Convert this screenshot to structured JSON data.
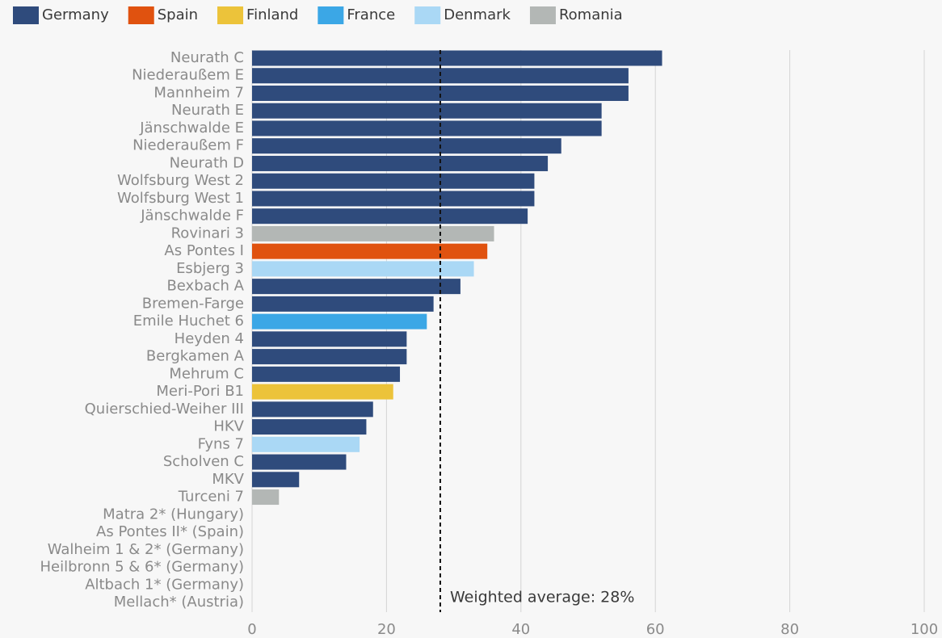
{
  "chart_data": {
    "type": "bar",
    "orientation": "horizontal",
    "categories": [
      "Neurath C",
      "Niederaußem E",
      "Mannheim 7",
      "Neurath E",
      "Jänschwalde E",
      "Niederaußem F",
      "Neurath D",
      "Wolfsburg West 2",
      "Wolfsburg West 1",
      "Jänschwalde F",
      "Rovinari 3",
      "As Pontes I",
      "Esbjerg 3",
      "Bexbach A",
      "Bremen-Farge",
      "Emile Huchet 6",
      "Heyden 4",
      "Bergkamen A",
      "Mehrum C",
      "Meri-Pori B1",
      "Quierschied-Weiher III",
      "HKV",
      "Fyns 7",
      "Scholven C",
      "MKV",
      "Turceni 7",
      "Matra 2* (Hungary)",
      "As Pontes II* (Spain)",
      "Walheim 1 & 2* (Germany)",
      "Heilbronn 5 & 6* (Germany)",
      "Altbach 1* (Germany)",
      "Mellach* (Austria)"
    ],
    "series": [
      {
        "name": "Germany",
        "color": "#2f4b7c",
        "values": [
          61,
          56,
          56,
          52,
          52,
          46,
          44,
          42,
          42,
          41,
          null,
          null,
          null,
          31,
          27,
          null,
          23,
          23,
          22,
          null,
          18,
          17,
          null,
          14,
          7,
          null,
          null,
          null,
          null,
          null,
          null,
          null
        ]
      },
      {
        "name": "Spain",
        "color": "#e0520f",
        "values": [
          null,
          null,
          null,
          null,
          null,
          null,
          null,
          null,
          null,
          null,
          null,
          35,
          null,
          null,
          null,
          null,
          null,
          null,
          null,
          null,
          null,
          null,
          null,
          null,
          null,
          null,
          null,
          null,
          null,
          null,
          null,
          null
        ]
      },
      {
        "name": "Finland",
        "color": "#ecc33a",
        "values": [
          null,
          null,
          null,
          null,
          null,
          null,
          null,
          null,
          null,
          null,
          null,
          null,
          null,
          null,
          null,
          null,
          null,
          null,
          null,
          21,
          null,
          null,
          null,
          null,
          null,
          null,
          null,
          null,
          null,
          null,
          null,
          null
        ]
      },
      {
        "name": "France",
        "color": "#3ba7e6",
        "values": [
          null,
          null,
          null,
          null,
          null,
          null,
          null,
          null,
          null,
          null,
          null,
          null,
          null,
          null,
          null,
          26,
          null,
          null,
          null,
          null,
          null,
          null,
          null,
          null,
          null,
          null,
          null,
          null,
          null,
          null,
          null,
          null
        ]
      },
      {
        "name": "Denmark",
        "color": "#aad8f5",
        "values": [
          null,
          null,
          null,
          null,
          null,
          null,
          null,
          null,
          null,
          null,
          null,
          null,
          33,
          null,
          null,
          null,
          null,
          null,
          null,
          null,
          null,
          null,
          16,
          null,
          null,
          null,
          null,
          null,
          null,
          null,
          null,
          null
        ]
      },
      {
        "name": "Romania",
        "color": "#b3b7b5",
        "values": [
          null,
          null,
          null,
          null,
          null,
          null,
          null,
          null,
          null,
          null,
          36,
          null,
          null,
          null,
          null,
          null,
          null,
          null,
          null,
          null,
          null,
          null,
          null,
          null,
          null,
          4,
          null,
          null,
          null,
          null,
          null,
          null
        ]
      }
    ],
    "xlim": [
      0,
      100
    ],
    "xticks": [
      0,
      20,
      40,
      60,
      80,
      100
    ],
    "grid": true,
    "legend_position": "top-left",
    "reference_line": {
      "value": 28,
      "label": "Weighted average: 28%"
    }
  }
}
